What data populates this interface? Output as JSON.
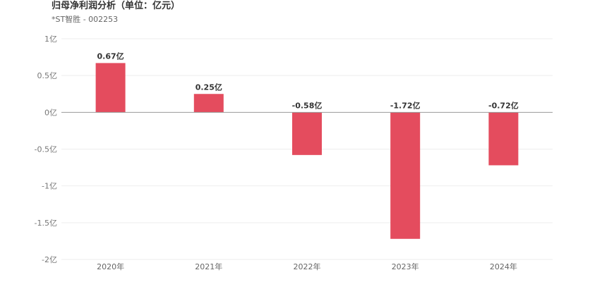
{
  "title": "归母净利润分析（单位：亿元）",
  "subtitle": "*ST智胜 - 002253",
  "colors": {
    "bar": "#e44c5e",
    "zero_line": "#999999",
    "grid": "#eeeeee"
  },
  "chart_data": {
    "type": "bar",
    "title": "归母净利润分析（单位：亿元）",
    "subtitle": "*ST智胜 - 002253",
    "categories": [
      "2020年",
      "2021年",
      "2022年",
      "2023年",
      "2024年"
    ],
    "values": [
      0.67,
      0.25,
      -0.58,
      -1.72,
      -0.72
    ],
    "data_labels": [
      "0.67亿",
      "0.25亿",
      "-0.58亿",
      "-1.72亿",
      "-0.72亿"
    ],
    "yticks": [
      1,
      0.5,
      0,
      -0.5,
      -1,
      -1.5,
      -2
    ],
    "ytick_labels": [
      "1亿",
      "0.5亿",
      "0亿",
      "-0.5亿",
      "-1亿",
      "-1.5亿",
      "-2亿"
    ],
    "ylim": [
      -2,
      1
    ],
    "xlabel": "",
    "ylabel": "",
    "grid": true,
    "legend": "none"
  }
}
